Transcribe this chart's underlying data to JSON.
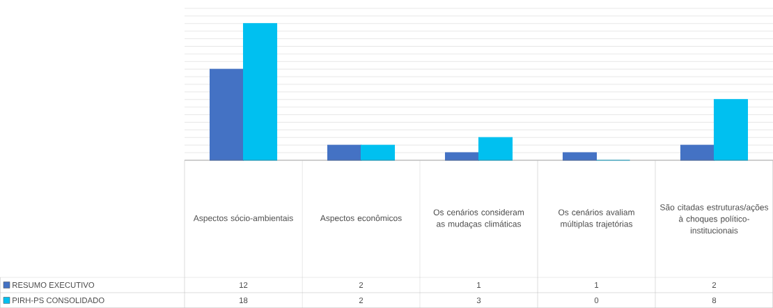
{
  "chart_data": {
    "type": "bar",
    "categories": [
      "Aspectos sócio-ambientais",
      "Aspectos econômicos",
      "Os cenários consideram as mudaças climáticas",
      "Os cenários avaliam múltiplas trajetórias",
      "São citadas estruturas/ações à choques político-institucionais"
    ],
    "series": [
      {
        "name": "RESUMO EXECUTIVO",
        "color": "#4472c4",
        "values": [
          12,
          2,
          1,
          1,
          2
        ]
      },
      {
        "name": "PIRH-PS CONSOLIDADO",
        "color": "#00c0f0",
        "values": [
          18,
          2,
          3,
          0,
          8
        ]
      }
    ],
    "ylim": [
      0,
      20
    ],
    "yticks": [
      {
        "value": 0,
        "label": null
      },
      {
        "value": 1,
        "label": null
      },
      {
        "value": 2,
        "label": null
      },
      {
        "value": 3,
        "label": null
      },
      {
        "value": 4,
        "label": null
      },
      {
        "value": 5,
        "label": null
      },
      {
        "value": 6,
        "label": null
      },
      {
        "value": 7,
        "label": null
      },
      {
        "value": 8,
        "label": null
      },
      {
        "value": 9,
        "label": null
      },
      {
        "value": 10,
        "label": null
      },
      {
        "value": 11,
        "label": null
      },
      {
        "value": 12,
        "label": null
      },
      {
        "value": 13,
        "label": null
      },
      {
        "value": 14,
        "label": null
      },
      {
        "value": 15,
        "label": null
      },
      {
        "value": 16,
        "label": null
      },
      {
        "value": 17,
        "label": null
      },
      {
        "value": 18,
        "label": null
      },
      {
        "value": 19,
        "label": null
      },
      {
        "value": 20,
        "label": null
      }
    ],
    "grid": "y",
    "data_labels": true,
    "legend": "bottom left"
  }
}
